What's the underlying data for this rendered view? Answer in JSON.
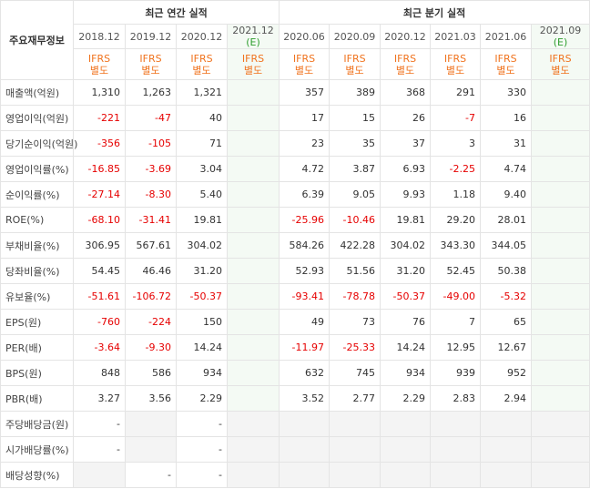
{
  "header": {
    "corner_label": "주요재무정보",
    "annual_label": "최근 연간 실적",
    "quarterly_label": "최근 분기 실적",
    "annual_periods": [
      "2018.12",
      "2019.12",
      "2020.12",
      "2021.12"
    ],
    "quarterly_periods": [
      "2020.06",
      "2020.09",
      "2020.12",
      "2021.03",
      "2021.06",
      "2021.09"
    ],
    "estimate_mark": "(E)",
    "ifrs_line1": "IFRS",
    "ifrs_line2": "별도"
  },
  "rows": [
    {
      "label": "매출액(억원)",
      "values": [
        "1,310",
        "1,263",
        "1,321",
        "",
        "357",
        "389",
        "368",
        "291",
        "330",
        ""
      ]
    },
    {
      "label": "영업이익(억원)",
      "values": [
        "-221",
        "-47",
        "40",
        "",
        "17",
        "15",
        "26",
        "-7",
        "16",
        ""
      ]
    },
    {
      "label": "당기순이익(억원)",
      "values": [
        "-356",
        "-105",
        "71",
        "",
        "23",
        "35",
        "37",
        "3",
        "31",
        ""
      ]
    },
    {
      "label": "영업이익률(%)",
      "values": [
        "-16.85",
        "-3.69",
        "3.04",
        "",
        "4.72",
        "3.87",
        "6.93",
        "-2.25",
        "4.74",
        ""
      ]
    },
    {
      "label": "순이익률(%)",
      "values": [
        "-27.14",
        "-8.30",
        "5.40",
        "",
        "6.39",
        "9.05",
        "9.93",
        "1.18",
        "9.40",
        ""
      ]
    },
    {
      "label": "ROE(%)",
      "values": [
        "-68.10",
        "-31.41",
        "19.81",
        "",
        "-25.96",
        "-10.46",
        "19.81",
        "29.20",
        "28.01",
        ""
      ]
    },
    {
      "label": "부채비율(%)",
      "values": [
        "306.95",
        "567.61",
        "304.02",
        "",
        "584.26",
        "422.28",
        "304.02",
        "343.30",
        "344.05",
        ""
      ]
    },
    {
      "label": "당좌비율(%)",
      "values": [
        "54.45",
        "46.46",
        "31.20",
        "",
        "52.93",
        "51.56",
        "31.20",
        "52.45",
        "50.38",
        ""
      ]
    },
    {
      "label": "유보율(%)",
      "values": [
        "-51.61",
        "-106.72",
        "-50.37",
        "",
        "-93.41",
        "-78.78",
        "-50.37",
        "-49.00",
        "-5.32",
        ""
      ]
    },
    {
      "label": "EPS(원)",
      "values": [
        "-760",
        "-224",
        "150",
        "",
        "49",
        "73",
        "76",
        "7",
        "65",
        ""
      ]
    },
    {
      "label": "PER(배)",
      "values": [
        "-3.64",
        "-9.30",
        "14.24",
        "",
        "-11.97",
        "-25.33",
        "14.24",
        "12.95",
        "12.67",
        ""
      ]
    },
    {
      "label": "BPS(원)",
      "values": [
        "848",
        "586",
        "934",
        "",
        "632",
        "745",
        "934",
        "939",
        "952",
        ""
      ]
    },
    {
      "label": "PBR(배)",
      "values": [
        "3.27",
        "3.56",
        "2.29",
        "",
        "3.52",
        "2.77",
        "2.29",
        "2.83",
        "2.94",
        ""
      ]
    },
    {
      "label": "주당배당금(원)",
      "values": [
        "-",
        "",
        "-",
        "",
        "",
        "",
        "",
        "",
        "",
        ""
      ]
    },
    {
      "label": "시가배당률(%)",
      "values": [
        "-",
        "",
        "-",
        "",
        "",
        "",
        "",
        "",
        "",
        ""
      ]
    },
    {
      "label": "배당성향(%)",
      "values": [
        "",
        "-",
        "-",
        "",
        "",
        "",
        "",
        "",
        "",
        ""
      ]
    }
  ],
  "colors": {
    "negative": "#e60000",
    "ifrs": "#f0731e",
    "estimate": "#2e9e2e"
  }
}
